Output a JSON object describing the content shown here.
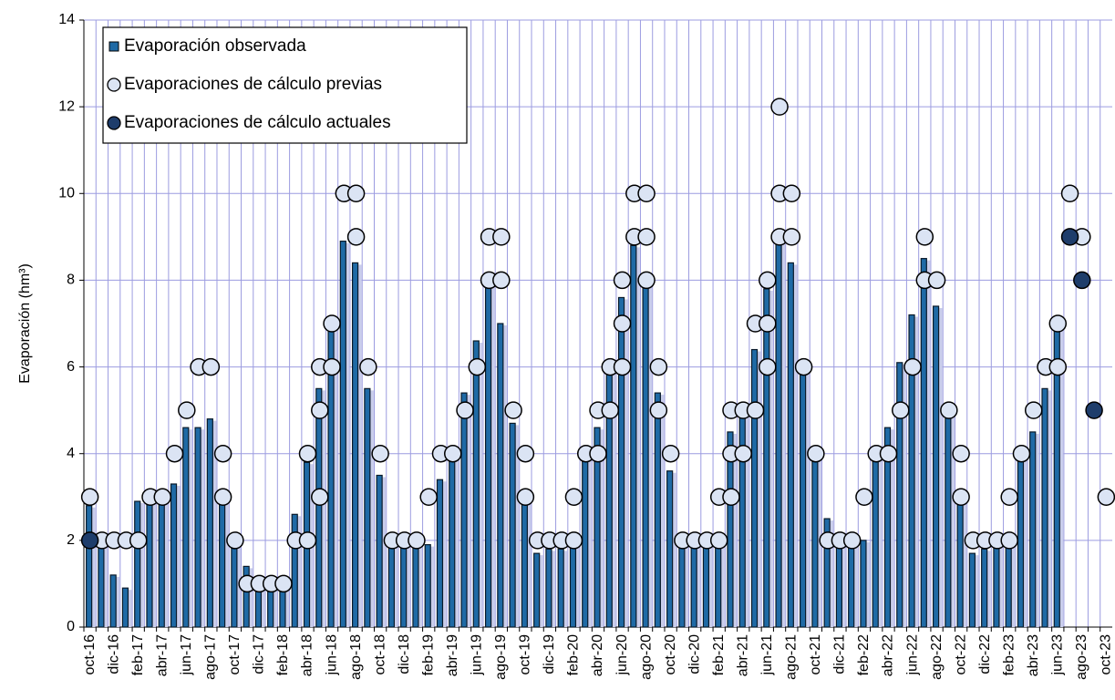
{
  "chart_data": {
    "type": "bar-scatter",
    "ylabel": "Evaporación (hm³)",
    "ylim": [
      0,
      14
    ],
    "yticks": [
      0,
      2,
      4,
      6,
      8,
      10,
      12,
      14
    ],
    "grid": true,
    "categories": [
      "oct-16",
      null,
      "dic-16",
      null,
      "feb-17",
      null,
      "abr-17",
      null,
      "jun-17",
      null,
      "ago-17",
      null,
      "oct-17",
      null,
      "dic-17",
      null,
      "feb-18",
      null,
      "abr-18",
      null,
      "jun-18",
      null,
      "ago-18",
      null,
      "oct-18",
      null,
      "dic-18",
      null,
      "feb-19",
      null,
      "abr-19",
      null,
      "jun-19",
      null,
      "ago-19",
      null,
      "oct-19",
      null,
      "dic-19",
      null,
      "feb-20",
      null,
      "abr-20",
      null,
      "jun-20",
      null,
      "ago-20",
      null,
      "oct-20",
      null,
      "dic-20",
      null,
      "feb-21",
      null,
      "abr-21",
      null,
      "jun-21",
      null,
      "ago-21",
      null,
      "oct-21",
      null,
      "dic-21",
      null,
      "feb-22",
      null,
      "abr-22",
      null,
      "jun-22",
      null,
      "ago-22",
      null,
      "oct-22",
      null,
      "dic-22",
      null,
      "feb-23",
      null,
      "abr-23",
      null,
      "jun-23",
      null,
      "ago-23",
      null,
      "oct-23"
    ],
    "legend": "upper left",
    "series": [
      {
        "name": "Evaporación observada",
        "kind": "bar",
        "color": "#1f6aa5",
        "values": [
          2.8,
          1.9,
          1.2,
          0.9,
          2.9,
          2.9,
          3.0,
          3.3,
          4.6,
          4.6,
          4.8,
          2.9,
          1.9,
          1.4,
          1.1,
          0.9,
          1.0,
          2.6,
          3.8,
          5.5,
          6.9,
          8.9,
          8.4,
          5.5,
          3.5,
          1.9,
          1.9,
          1.9,
          1.9,
          3.4,
          3.9,
          5.4,
          6.6,
          7.9,
          7.0,
          4.7,
          2.9,
          1.7,
          1.8,
          1.8,
          1.9,
          3.9,
          4.6,
          5.9,
          7.6,
          8.8,
          7.9,
          5.4,
          3.6,
          1.9,
          1.9,
          1.9,
          1.9,
          4.5,
          4.9,
          6.4,
          7.8,
          8.9,
          8.4,
          5.9,
          3.9,
          2.5,
          2.0,
          1.9,
          2.0,
          3.9,
          4.6,
          6.1,
          7.2,
          8.5,
          7.4,
          4.9,
          2.9,
          1.7,
          1.8,
          1.9,
          1.9,
          3.9,
          4.5,
          5.5,
          6.9,
          null,
          null,
          null,
          null
        ]
      },
      {
        "name": "Evaporaciones de cálculo previas",
        "kind": "points",
        "color": "#dbe4f4",
        "values": [
          [
            3
          ],
          [
            2
          ],
          [
            2
          ],
          [
            2
          ],
          [
            2
          ],
          [
            3
          ],
          [
            3
          ],
          [
            4
          ],
          [
            5
          ],
          [
            6
          ],
          [
            6
          ],
          [
            4,
            3
          ],
          [
            2
          ],
          [
            1
          ],
          [
            1
          ],
          [
            1
          ],
          [
            1
          ],
          [
            2
          ],
          [
            4,
            2
          ],
          [
            6,
            5,
            3
          ],
          [
            7,
            6
          ],
          [
            10
          ],
          [
            10,
            9
          ],
          [
            6
          ],
          [
            4
          ],
          [
            2
          ],
          [
            2
          ],
          [
            2
          ],
          [
            3
          ],
          [
            4
          ],
          [
            4
          ],
          [
            5
          ],
          [
            6
          ],
          [
            9,
            8
          ],
          [
            9,
            8
          ],
          [
            5
          ],
          [
            4,
            3
          ],
          [
            2
          ],
          [
            2
          ],
          [
            2
          ],
          [
            3,
            2
          ],
          [
            4
          ],
          [
            5,
            4
          ],
          [
            6,
            5
          ],
          [
            8,
            7,
            6
          ],
          [
            10,
            9
          ],
          [
            10,
            9,
            8
          ],
          [
            6,
            5
          ],
          [
            4
          ],
          [
            2
          ],
          [
            2
          ],
          [
            2
          ],
          [
            3,
            2
          ],
          [
            5,
            4,
            3
          ],
          [
            5,
            4
          ],
          [
            7,
            5
          ],
          [
            8,
            7,
            6
          ],
          [
            12,
            10,
            9
          ],
          [
            10,
            9
          ],
          [
            6
          ],
          [
            4
          ],
          [
            2
          ],
          [
            2
          ],
          [
            2
          ],
          [
            3
          ],
          [
            4
          ],
          [
            4
          ],
          [
            5
          ],
          [
            6
          ],
          [
            9,
            8
          ],
          [
            8
          ],
          [
            5
          ],
          [
            4,
            3
          ],
          [
            2
          ],
          [
            2
          ],
          [
            2
          ],
          [
            3,
            2
          ],
          [
            4
          ],
          [
            5
          ],
          [
            6
          ],
          [
            7,
            6
          ],
          [
            10
          ],
          [
            9
          ],
          null,
          [
            3
          ]
        ]
      },
      {
        "name": "Evaporaciones de cálculo actuales",
        "kind": "points",
        "color": "#1e3d6b",
        "values": [
          [
            2
          ],
          null,
          null,
          null,
          null,
          null,
          null,
          null,
          null,
          null,
          null,
          null,
          null,
          null,
          null,
          null,
          null,
          null,
          null,
          null,
          null,
          null,
          null,
          null,
          null,
          null,
          null,
          null,
          null,
          null,
          null,
          null,
          null,
          null,
          null,
          null,
          null,
          null,
          null,
          null,
          null,
          null,
          null,
          null,
          null,
          null,
          null,
          null,
          null,
          null,
          null,
          null,
          null,
          null,
          null,
          null,
          null,
          null,
          null,
          null,
          null,
          null,
          null,
          null,
          null,
          null,
          null,
          null,
          null,
          null,
          null,
          null,
          null,
          null,
          null,
          null,
          null,
          null,
          null,
          null,
          null,
          [
            9
          ],
          [
            8
          ],
          [
            5
          ],
          null
        ]
      }
    ]
  }
}
